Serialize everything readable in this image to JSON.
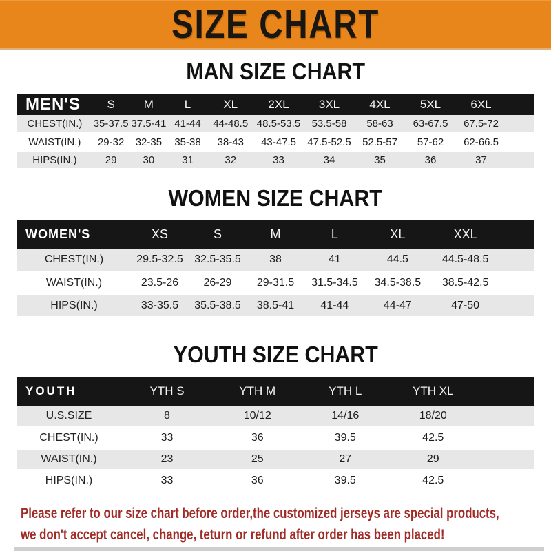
{
  "banner": {
    "title": "SIZE CHART",
    "bg_color": "#E8861B"
  },
  "sections": [
    {
      "id": "men",
      "title": "MAN SIZE CHART",
      "header_label": "MEN'S",
      "columns": [
        "S",
        "M",
        "L",
        "XL",
        "2XL",
        "3XL",
        "4XL",
        "5XL",
        "6XL"
      ],
      "rows": [
        {
          "label": "CHEST(IN.)",
          "values": [
            "35-37.5",
            "37.5-41",
            "41-44",
            "44-48.5",
            "48.5-53.5",
            "53.5-58",
            "58-63",
            "63-67.5",
            "67.5-72"
          ]
        },
        {
          "label": "WAIST(IN.)",
          "values": [
            "29-32",
            "32-35",
            "35-38",
            "38-43",
            "43-47.5",
            "47.5-52.5",
            "52.5-57",
            "57-62",
            "62-66.5"
          ]
        },
        {
          "label": "HIPS(IN.)",
          "values": [
            "29",
            "30",
            "31",
            "32",
            "33",
            "34",
            "35",
            "36",
            "37"
          ]
        }
      ]
    },
    {
      "id": "women",
      "title": "WOMEN SIZE CHART",
      "header_label": "WOMEN'S",
      "columns": [
        "XS",
        "S",
        "M",
        "L",
        "XL",
        "XXL"
      ],
      "rows": [
        {
          "label": "CHEST(IN.)",
          "values": [
            "29.5-32.5",
            "32.5-35.5",
            "38",
            "41",
            "44.5",
            "44.5-48.5"
          ]
        },
        {
          "label": "WAIST(IN.)",
          "values": [
            "23.5-26",
            "26-29",
            "29-31.5",
            "31.5-34.5",
            "34.5-38.5",
            "38.5-42.5"
          ]
        },
        {
          "label": "HIPS(IN.)",
          "values": [
            "33-35.5",
            "35.5-38.5",
            "38.5-41",
            "41-44",
            "44-47",
            "47-50"
          ]
        }
      ]
    },
    {
      "id": "youth",
      "title": "YOUTH SIZE CHART",
      "header_label": "YOUTH",
      "columns": [
        "YTH S",
        "YTH M",
        "YTH L",
        "YTH XL"
      ],
      "rows": [
        {
          "label": "U.S.SIZE",
          "values": [
            "8",
            "10/12",
            "14/16",
            "18/20"
          ]
        },
        {
          "label": "CHEST(IN.)",
          "values": [
            "33",
            "36",
            "39.5",
            "42.5"
          ]
        },
        {
          "label": "WAIST(IN.)",
          "values": [
            "23",
            "25",
            "27",
            "29"
          ]
        },
        {
          "label": "HIPS(IN.)",
          "values": [
            "33",
            "36",
            "39.5",
            "42.5"
          ]
        }
      ]
    }
  ],
  "footer": {
    "line1": "Please refer to our size chart before order,the customized jerseys are special products,",
    "line2": "we don't accept cancel, change, teturn or refund after order has been placed!",
    "text_color": "#A12C27"
  }
}
